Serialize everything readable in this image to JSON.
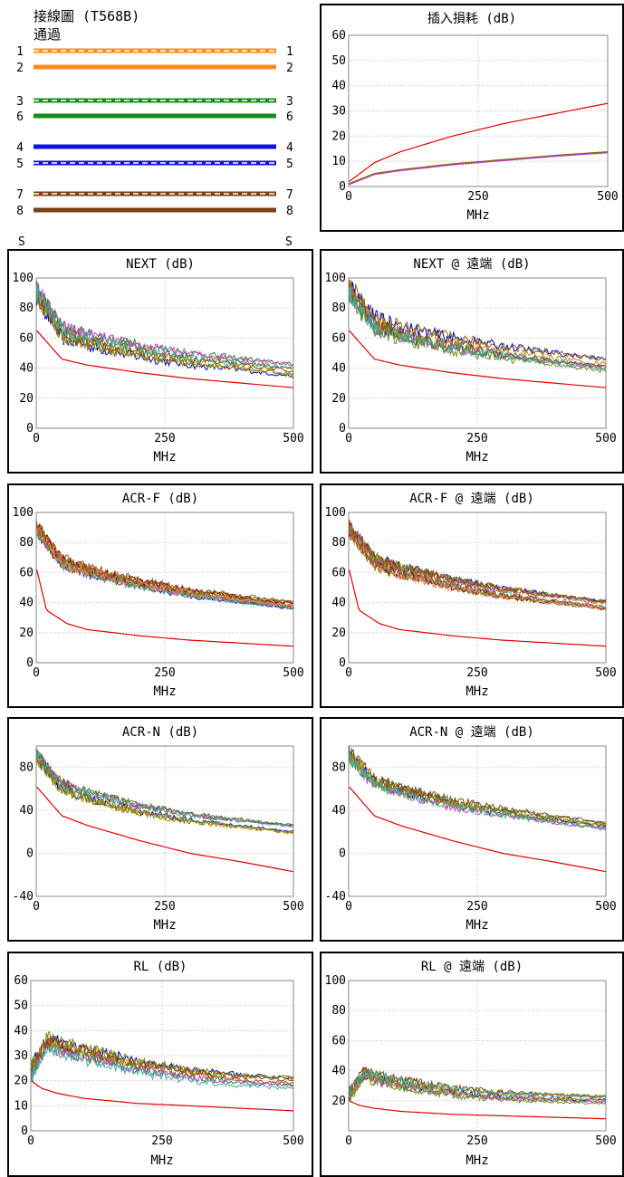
{
  "wiremap": {
    "title": "接線圖 (T568B)",
    "status": "通過",
    "end_labels": [
      "S",
      "S"
    ],
    "pairs": [
      {
        "pin": "1",
        "color": "#ff8c1a",
        "striped": true
      },
      {
        "pin": "2",
        "color": "#ff8c1a",
        "striped": false
      },
      {
        "pin": "3",
        "color": "#1a8c1a",
        "striped": true
      },
      {
        "pin": "6",
        "color": "#1a8c1a",
        "striped": false
      },
      {
        "pin": "4",
        "color": "#1010e0",
        "striped": false
      },
      {
        "pin": "5",
        "color": "#1010e0",
        "striped": true
      },
      {
        "pin": "7",
        "color": "#7a3f10",
        "striped": true
      },
      {
        "pin": "8",
        "color": "#7a3f10",
        "striped": false
      }
    ]
  },
  "colors": {
    "limit": "#e00000",
    "grid": "#bbbbbb",
    "pairs": [
      "#0000d0",
      "#2e7d32",
      "#8b6508",
      "#d040d0",
      "#c68a00",
      "#6b8e23",
      "#8b4513",
      "#3ab0a0",
      "#7a0000",
      "#808000",
      "#ff8080",
      "#a0522d"
    ]
  },
  "chart_data": [
    {
      "type": "line",
      "title": "插入損耗 (dB)",
      "xlabel": "MHz",
      "xlim": [
        0,
        500
      ],
      "ylim": [
        0,
        60
      ],
      "xticks": [
        0,
        250,
        500
      ],
      "yticks": [
        0,
        10,
        20,
        30,
        40,
        50,
        60
      ],
      "y_is_noisy": false,
      "limit": {
        "x": [
          1,
          50,
          100,
          200,
          300,
          400,
          500
        ],
        "y": [
          2.0,
          9.5,
          13.8,
          20.0,
          25.0,
          29.0,
          33.0
        ]
      },
      "series": {
        "x": [
          1,
          50,
          100,
          200,
          300,
          400,
          500
        ],
        "y": [
          1.0,
          5.0,
          6.5,
          8.8,
          10.5,
          12.2,
          13.6
        ],
        "spread": 0.6,
        "count": 4
      }
    },
    {
      "type": "line",
      "title": "NEXT (dB)",
      "xlabel": "MHz",
      "xlim": [
        0,
        500
      ],
      "ylim": [
        0,
        100
      ],
      "xticks": [
        0,
        250,
        500
      ],
      "yticks": [
        0,
        20,
        40,
        60,
        80,
        100
      ],
      "limit": {
        "x": [
          1,
          50,
          100,
          200,
          300,
          400,
          500
        ],
        "y": [
          65,
          46,
          42,
          37,
          33,
          30,
          27
        ]
      },
      "series": {
        "x": [
          1,
          50,
          100,
          200,
          300,
          400,
          500
        ],
        "y": [
          88,
          62,
          57,
          50,
          45,
          42,
          38
        ],
        "spread": 10,
        "count": 8
      }
    },
    {
      "type": "line",
      "title": "NEXT @ 遠端 (dB)",
      "xlabel": "MHz",
      "xlim": [
        0,
        500
      ],
      "ylim": [
        0,
        100
      ],
      "xticks": [
        0,
        250,
        500
      ],
      "yticks": [
        0,
        20,
        40,
        60,
        80,
        100
      ],
      "limit": {
        "x": [
          1,
          50,
          100,
          200,
          300,
          400,
          500
        ],
        "y": [
          65,
          46,
          42,
          37,
          33,
          30,
          27
        ]
      },
      "series": {
        "x": [
          1,
          50,
          100,
          200,
          300,
          400,
          500
        ],
        "y": [
          90,
          68,
          62,
          55,
          50,
          46,
          42
        ],
        "spread": 12,
        "count": 8
      }
    },
    {
      "type": "line",
      "title": "ACR-F (dB)",
      "xlabel": "MHz",
      "xlim": [
        0,
        500
      ],
      "ylim": [
        0,
        100
      ],
      "xticks": [
        0,
        250,
        500
      ],
      "yticks": [
        0,
        20,
        40,
        60,
        80,
        100
      ],
      "limit": {
        "x": [
          1,
          20,
          60,
          100,
          200,
          300,
          400,
          500
        ],
        "y": [
          62,
          35,
          26,
          22,
          18,
          15,
          13,
          11
        ]
      },
      "series": {
        "x": [
          1,
          50,
          100,
          200,
          300,
          400,
          500
        ],
        "y": [
          88,
          66,
          60,
          52,
          46,
          42,
          38
        ],
        "spread": 8,
        "count": 12
      }
    },
    {
      "type": "line",
      "title": "ACR-F @ 遠端 (dB)",
      "xlabel": "MHz",
      "xlim": [
        0,
        500
      ],
      "ylim": [
        0,
        100
      ],
      "xticks": [
        0,
        250,
        500
      ],
      "yticks": [
        0,
        20,
        40,
        60,
        80,
        100
      ],
      "limit": {
        "x": [
          1,
          20,
          60,
          100,
          200,
          300,
          400,
          500
        ],
        "y": [
          62,
          35,
          26,
          22,
          18,
          15,
          13,
          11
        ]
      },
      "series": {
        "x": [
          1,
          50,
          100,
          200,
          300,
          400,
          500
        ],
        "y": [
          88,
          66,
          60,
          52,
          46,
          42,
          38
        ],
        "spread": 8,
        "count": 12
      }
    },
    {
      "type": "line",
      "title": "ACR-N (dB)",
      "xlabel": "MHz",
      "xlim": [
        0,
        500
      ],
      "ylim": [
        -40,
        100
      ],
      "xticks": [
        0,
        250,
        500
      ],
      "yticks": [
        -40,
        0,
        40,
        80
      ],
      "limit": {
        "x": [
          1,
          50,
          100,
          200,
          300,
          400,
          500
        ],
        "y": [
          62,
          35,
          26,
          12,
          0,
          -8,
          -17
        ]
      },
      "series": {
        "x": [
          1,
          50,
          100,
          200,
          300,
          400,
          500
        ],
        "y": [
          88,
          60,
          52,
          40,
          32,
          27,
          22
        ],
        "spread": 10,
        "count": 8
      }
    },
    {
      "type": "line",
      "title": "ACR-N @ 遠端 (dB)",
      "xlabel": "MHz",
      "xlim": [
        0,
        500
      ],
      "ylim": [
        -40,
        100
      ],
      "xticks": [
        0,
        250,
        500
      ],
      "yticks": [
        -40,
        0,
        40,
        80
      ],
      "limit": {
        "x": [
          1,
          50,
          100,
          200,
          300,
          400,
          500
        ],
        "y": [
          62,
          35,
          26,
          12,
          0,
          -8,
          -17
        ]
      },
      "series": {
        "x": [
          1,
          50,
          100,
          200,
          300,
          400,
          500
        ],
        "y": [
          90,
          65,
          58,
          46,
          38,
          32,
          26
        ],
        "spread": 12,
        "count": 8
      }
    },
    {
      "type": "line",
      "title": "RL (dB)",
      "xlabel": "MHz",
      "xlim": [
        0,
        500
      ],
      "ylim": [
        0,
        60
      ],
      "xticks": [
        0,
        250,
        500
      ],
      "yticks": [
        0,
        10,
        20,
        30,
        40,
        50,
        60
      ],
      "limit": {
        "x": [
          1,
          20,
          50,
          100,
          200,
          300,
          400,
          500
        ],
        "y": [
          20,
          17,
          15,
          13,
          11,
          10,
          9,
          8
        ]
      },
      "series": {
        "x": [
          1,
          30,
          60,
          100,
          200,
          300,
          400,
          500
        ],
        "y": [
          22,
          34,
          32,
          30,
          25,
          22,
          20,
          19
        ],
        "spread": 6,
        "count": 8
      }
    },
    {
      "type": "line",
      "title": "RL @ 遠端 (dB)",
      "xlabel": "MHz",
      "xlim": [
        0,
        500
      ],
      "ylim": [
        0,
        100
      ],
      "xticks": [
        0,
        250,
        500
      ],
      "yticks": [
        20,
        40,
        60,
        80,
        100
      ],
      "limit": {
        "x": [
          1,
          20,
          50,
          100,
          200,
          300,
          400,
          500
        ],
        "y": [
          20,
          17,
          15,
          13,
          11,
          10,
          9,
          8
        ]
      },
      "series": {
        "x": [
          1,
          30,
          60,
          100,
          200,
          300,
          400,
          500
        ],
        "y": [
          22,
          36,
          33,
          30,
          25,
          22,
          21,
          20
        ],
        "spread": 7,
        "count": 8
      }
    }
  ]
}
